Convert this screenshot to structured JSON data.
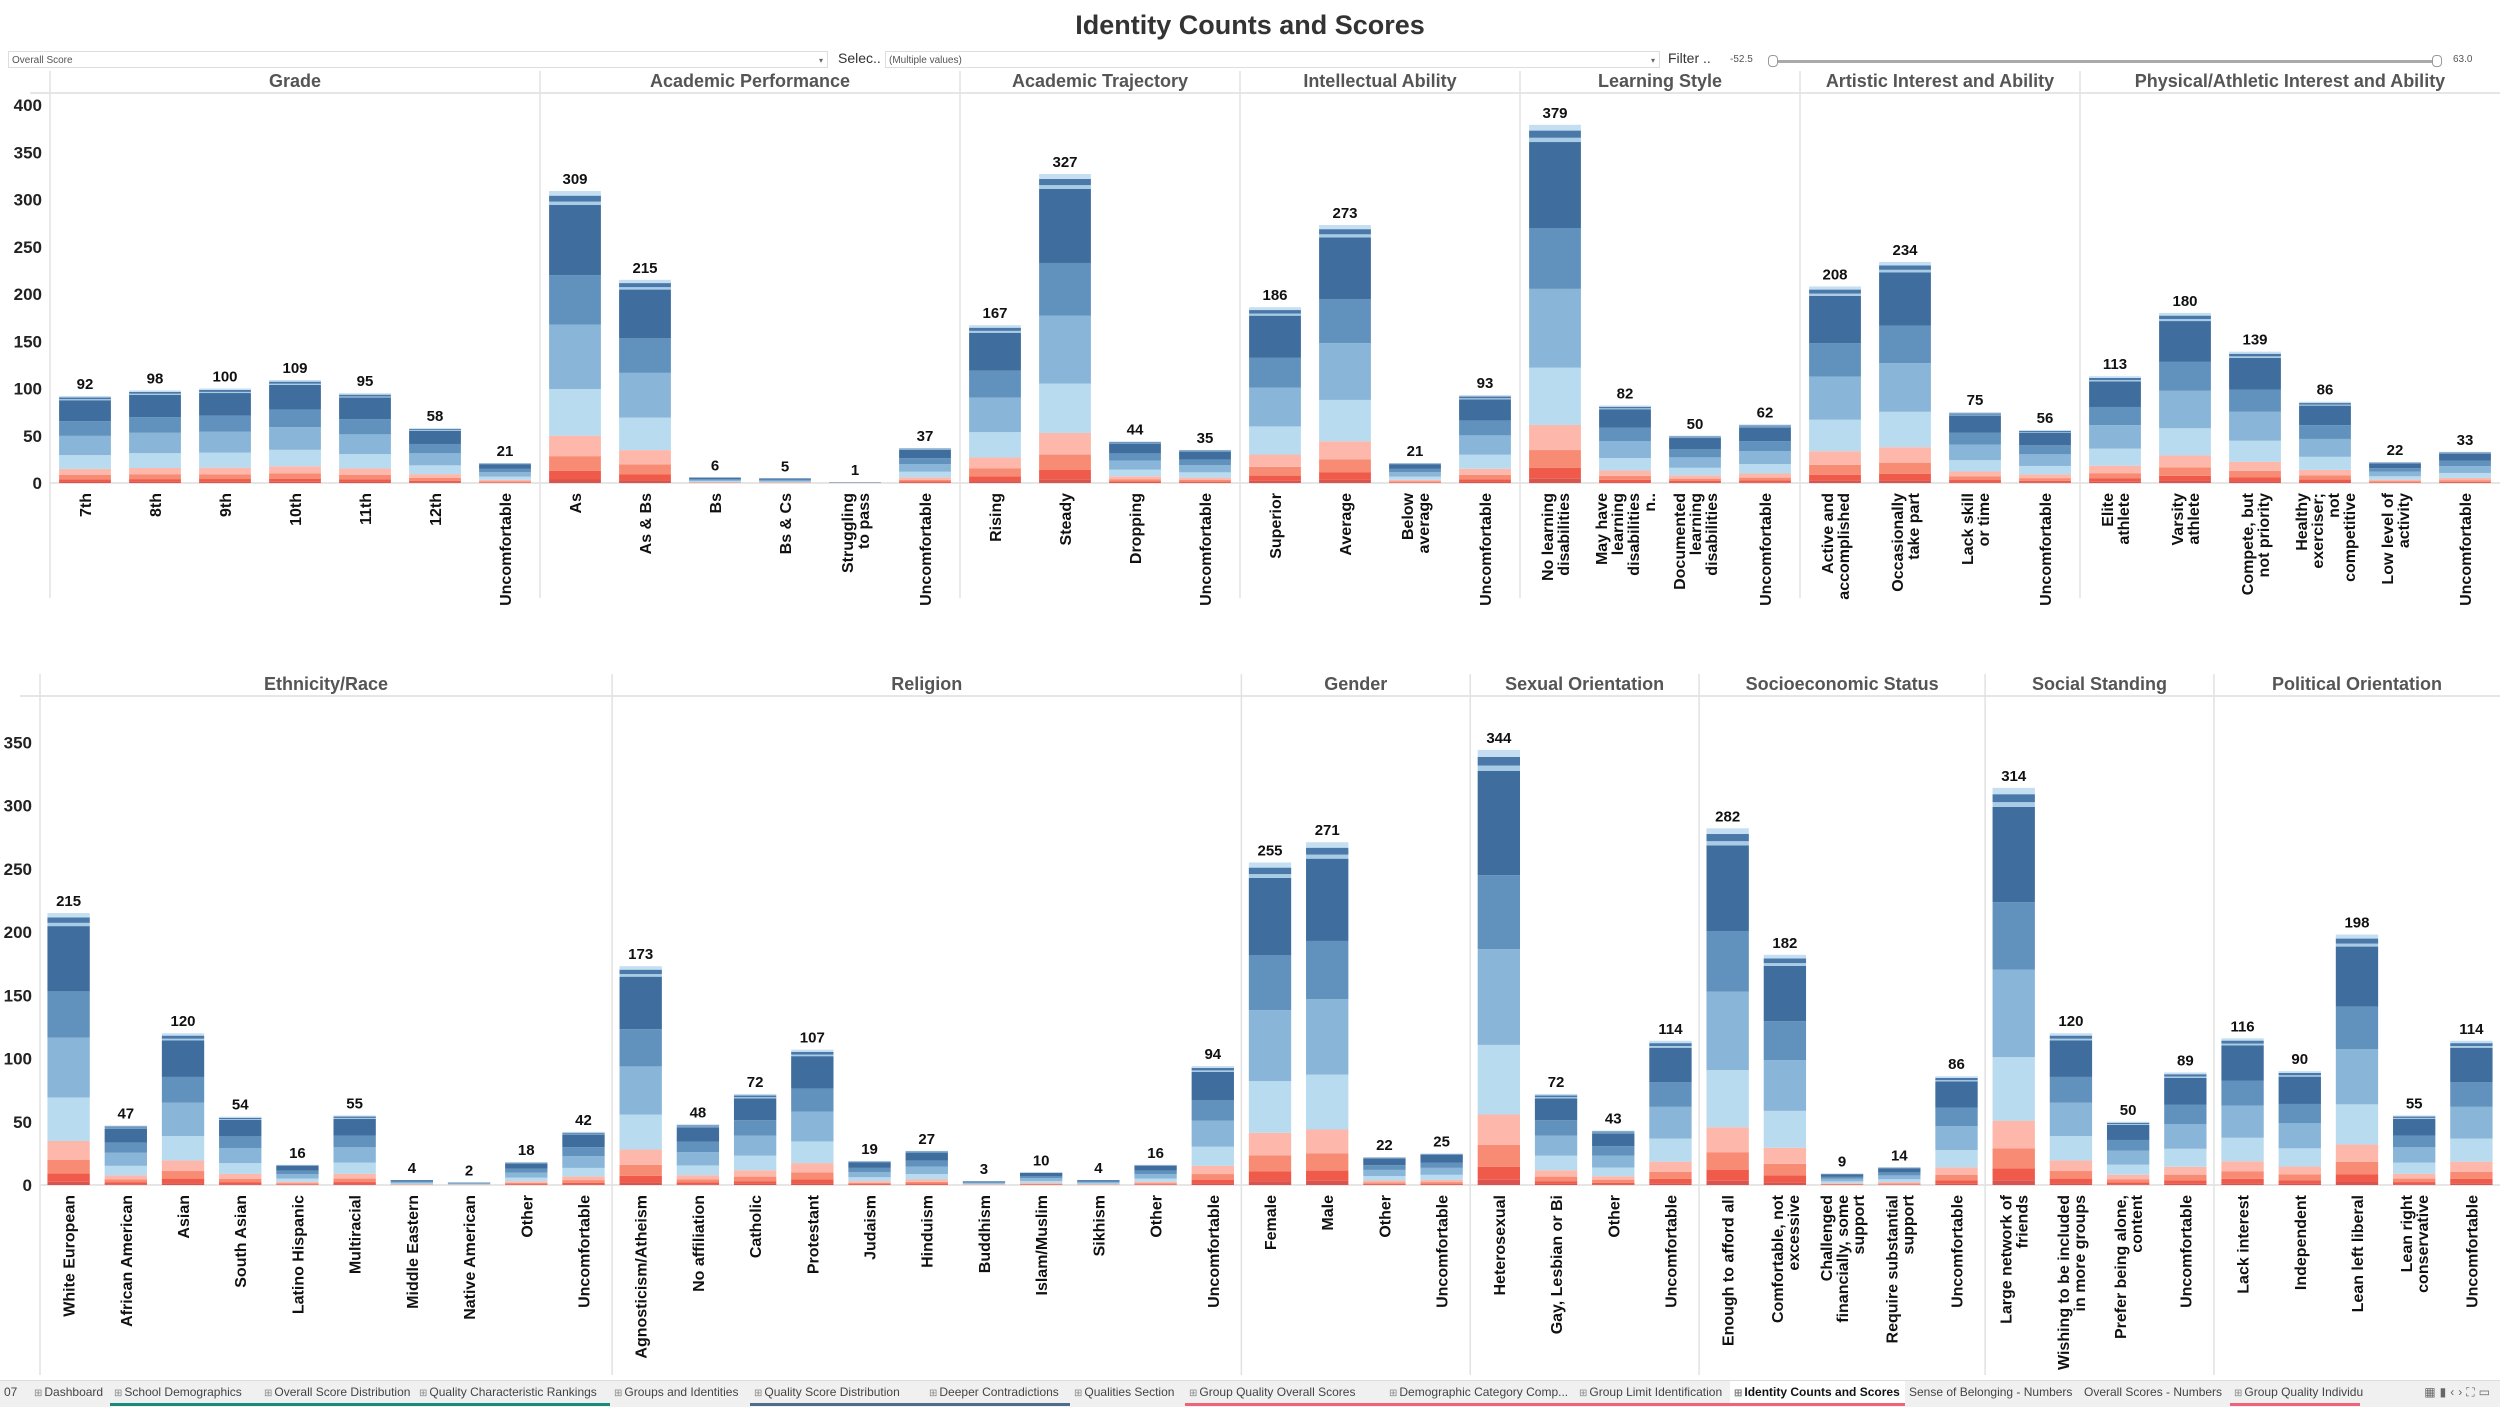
{
  "page": {
    "title": "Identity Counts and Scores"
  },
  "controls": {
    "measure_select": {
      "value": "Overall Score"
    },
    "select_label": "Selec..",
    "select_value": "(Multiple values)",
    "filter_label": "Filter ..",
    "filter_min": "-52.5",
    "filter_max": "63.0"
  },
  "colors": {
    "segments": [
      "#d9534f",
      "#ef5a4a",
      "#f88b73",
      "#fdb8ab",
      "#b8dbf0",
      "#88b5d8",
      "#6192bd",
      "#3f6d9e",
      "#a8cbe6",
      "#4a78a8",
      "#c5dff2"
    ],
    "accent_teal": "#1a8a7a",
    "accent_slate": "#4e6d8c",
    "accent_red": "#f0627a"
  },
  "chart_data": [
    {
      "type": "bar",
      "stacked": true,
      "title": "Identity Counts and Scores (top)",
      "ylabel": "",
      "ylim": [
        0,
        400
      ],
      "yticks": [
        0,
        50,
        100,
        150,
        200,
        250,
        300,
        350,
        400
      ],
      "grid": false,
      "groups": [
        {
          "name": "Grade",
          "categories": [
            "7th",
            "8th",
            "9th",
            "10th",
            "11th",
            "12th",
            "Uncomfortable"
          ],
          "values": [
            92,
            98,
            100,
            109,
            95,
            58,
            21
          ]
        },
        {
          "name": "Academic Performance",
          "categories": [
            "As",
            "As & Bs",
            "Bs",
            "Bs & Cs",
            "Struggling to pass",
            "Uncomfortable"
          ],
          "values": [
            309,
            215,
            6,
            5,
            1,
            37
          ]
        },
        {
          "name": "Academic Trajectory",
          "categories": [
            "Rising",
            "Steady",
            "Dropping",
            "Uncomfortable"
          ],
          "values": [
            167,
            327,
            44,
            35
          ]
        },
        {
          "name": "Intellectual Ability",
          "categories": [
            "Superior",
            "Average",
            "Below average",
            "Uncomfortable"
          ],
          "values": [
            186,
            273,
            21,
            93
          ]
        },
        {
          "name": "Learning Style",
          "categories": [
            "No learning disabilities",
            "May have learning disabilities n..",
            "Documented learning disabilities",
            "Uncomfortable"
          ],
          "values": [
            379,
            82,
            50,
            62
          ]
        },
        {
          "name": "Artistic Interest and Ability",
          "categories": [
            "Active and accomplished",
            "Occasionally take part",
            "Lack skill or time",
            "Uncomfortable"
          ],
          "values": [
            208,
            234,
            75,
            56
          ]
        },
        {
          "name": "Physical/Athletic Interest and Ability",
          "categories": [
            "Elite athlete",
            "Varsity athlete",
            "Compete, but not priority",
            "Healthy exerciser; not competitive",
            "Low level of activity",
            "Uncomfortable"
          ],
          "values": [
            113,
            180,
            139,
            86,
            22,
            33
          ]
        }
      ]
    },
    {
      "type": "bar",
      "stacked": true,
      "title": "Identity Counts and Scores (bottom)",
      "ylabel": "",
      "ylim": [
        0,
        370
      ],
      "yticks": [
        0,
        50,
        100,
        150,
        200,
        250,
        300,
        350
      ],
      "grid": false,
      "groups": [
        {
          "name": "Ethnicity/Race",
          "categories": [
            "White European",
            "African American",
            "Asian",
            "South Asian",
            "Latino Hispanic",
            "Multiracial",
            "Middle Eastern",
            "Native American",
            "Other",
            "Uncomfortable"
          ],
          "values": [
            215,
            47,
            120,
            54,
            16,
            55,
            4,
            2,
            18,
            42
          ]
        },
        {
          "name": "Religion",
          "categories": [
            "Agnosticism/Atheism",
            "No affiliation",
            "Catholic",
            "Protestant",
            "Judaism",
            "Hinduism",
            "Buddhism",
            "Islam/Muslim",
            "Sikhism",
            "Other",
            "Uncomfortable"
          ],
          "values": [
            173,
            48,
            72,
            107,
            19,
            27,
            3,
            10,
            4,
            16,
            94
          ]
        },
        {
          "name": "Gender",
          "categories": [
            "Female",
            "Male",
            "Other",
            "Uncomfortable"
          ],
          "values": [
            255,
            271,
            22,
            25
          ]
        },
        {
          "name": "Sexual Orientation",
          "categories": [
            "Heterosexual",
            "Gay, Lesbian or Bi",
            "Other",
            "Uncomfortable"
          ],
          "values": [
            344,
            72,
            43,
            114
          ]
        },
        {
          "name": "Socioeconomic Status",
          "categories": [
            "Enough to afford all",
            "Comfortable, not excessive",
            "Challenged financially, some support",
            "Require substantial support",
            "Uncomfortable"
          ],
          "values": [
            282,
            182,
            9,
            14,
            86
          ]
        },
        {
          "name": "Social Standing",
          "categories": [
            "Large network of friends",
            "Wishing to be included in more groups",
            "Prefer being alone, content",
            "Uncomfortable"
          ],
          "values": [
            314,
            120,
            50,
            89
          ]
        },
        {
          "name": "Political Orientation",
          "categories": [
            "Lack interest",
            "Independent",
            "Lean left liberal",
            "Lean right conservative",
            "Uncomfortable"
          ],
          "values": [
            116,
            90,
            198,
            55,
            114
          ]
        }
      ]
    }
  ],
  "tabs": [
    {
      "label": "07",
      "icon": false,
      "underline": ""
    },
    {
      "label": "Dashboard",
      "icon": true,
      "underline": ""
    },
    {
      "label": "School Demographics",
      "icon": true,
      "underline": "#1a8a7a"
    },
    {
      "label": "Overall Score Distribution",
      "icon": true,
      "underline": "#1a8a7a"
    },
    {
      "label": "Quality Characteristic Rankings",
      "icon": true,
      "underline": "#1a8a7a"
    },
    {
      "label": "Groups and Identities",
      "icon": true,
      "underline": ""
    },
    {
      "label": "Quality Score Distribution",
      "icon": true,
      "underline": "#4e6d8c"
    },
    {
      "label": "Deeper Contradictions",
      "icon": true,
      "underline": "#4e6d8c"
    },
    {
      "label": "Qualities Section",
      "icon": true,
      "underline": ""
    },
    {
      "label": "Group Quality Overall Scores",
      "icon": true,
      "underline": "#f0627a"
    },
    {
      "label": "Demographic Category Comp...",
      "icon": true,
      "underline": "#f0627a"
    },
    {
      "label": "Group Limit Identification",
      "icon": true,
      "underline": "#f0627a"
    },
    {
      "label": "Identity Counts and Scores",
      "icon": true,
      "underline": "#f0627a",
      "active": true
    },
    {
      "label": "Sense of Belonging - Numbers",
      "icon": false,
      "underline": ""
    },
    {
      "label": "Overall Scores - Numbers",
      "icon": false,
      "underline": ""
    },
    {
      "label": "Group Quality Individu",
      "icon": true,
      "underline": "#f0627a"
    }
  ],
  "nav_icons": [
    "grid-view-icon",
    "filmstrip-icon",
    "prev-icon",
    "next-icon",
    "fullscreen-icon",
    "present-icon"
  ]
}
